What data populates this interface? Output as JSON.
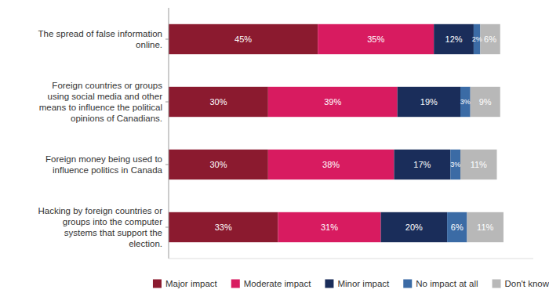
{
  "chart_data": {
    "type": "bar",
    "orientation": "horizontal",
    "stacked": true,
    "data_labels": true,
    "tick_labels": "y",
    "legend": "bottom",
    "xlim": [
      0,
      110
    ],
    "categories": [
      "The spread of false information\nonline.",
      "Foreign countries or groups\nusing social media and other\nmeans to influence the political\nopinions of Canadians.",
      "Foreign money being used to\ninfluence politics in Canada",
      "Hacking by foreign countries or\ngroups into the computer\nsystems that support the\nelection."
    ],
    "series": [
      {
        "name": "Major impact",
        "color": "#8B1A2F",
        "values": [
          45,
          30,
          30,
          33
        ],
        "value_labels": [
          "45%",
          "30%",
          "30%",
          "33%"
        ]
      },
      {
        "name": "Moderate impact",
        "color": "#D81B60",
        "values": [
          35,
          39,
          38,
          31
        ],
        "value_labels": [
          "35%",
          "39%",
          "38%",
          "31%"
        ]
      },
      {
        "name": "Minor impact",
        "color": "#1A2D5A",
        "values": [
          12,
          19,
          17,
          20
        ],
        "value_labels": [
          "12%",
          "19%",
          "17%",
          "20%"
        ]
      },
      {
        "name": "No impact at all",
        "color": "#3B6BA5",
        "values": [
          2,
          3,
          3,
          6
        ],
        "value_labels": [
          "2%",
          "3%",
          "3%",
          "6%"
        ]
      },
      {
        "name": "Don't know",
        "color": "#B8B8B8",
        "values": [
          6,
          9,
          11,
          11
        ],
        "value_labels": [
          "6%",
          "9%",
          "11%",
          "11%"
        ]
      }
    ]
  }
}
